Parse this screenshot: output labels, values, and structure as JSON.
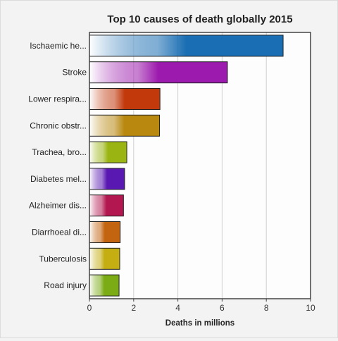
{
  "chart_data": {
    "type": "bar",
    "orientation": "horizontal",
    "title": "Top 10 causes of death globally 2015",
    "xlabel": "Deaths in millions",
    "ylabel": "",
    "xlim": [
      0,
      10
    ],
    "xticks": [
      "0",
      "2",
      "4",
      "6",
      "8",
      "10"
    ],
    "grid": true,
    "categories": [
      "Ischaemic he...",
      "Stroke",
      "Lower respira...",
      "Chronic obstr...",
      "Trachea, bro...",
      "Diabetes mel...",
      "Alzheimer dis...",
      "Diarrhoeal di...",
      "Tuberculosis",
      "Road injury"
    ],
    "values": [
      8.76,
      6.24,
      3.19,
      3.17,
      1.69,
      1.59,
      1.54,
      1.39,
      1.37,
      1.34
    ],
    "colors": [
      "#1a6eb3",
      "#9c1aad",
      "#c2390c",
      "#b8880f",
      "#9ab511",
      "#5a18b3",
      "#b3174f",
      "#c26410",
      "#c4ae12",
      "#7bab15"
    ]
  }
}
